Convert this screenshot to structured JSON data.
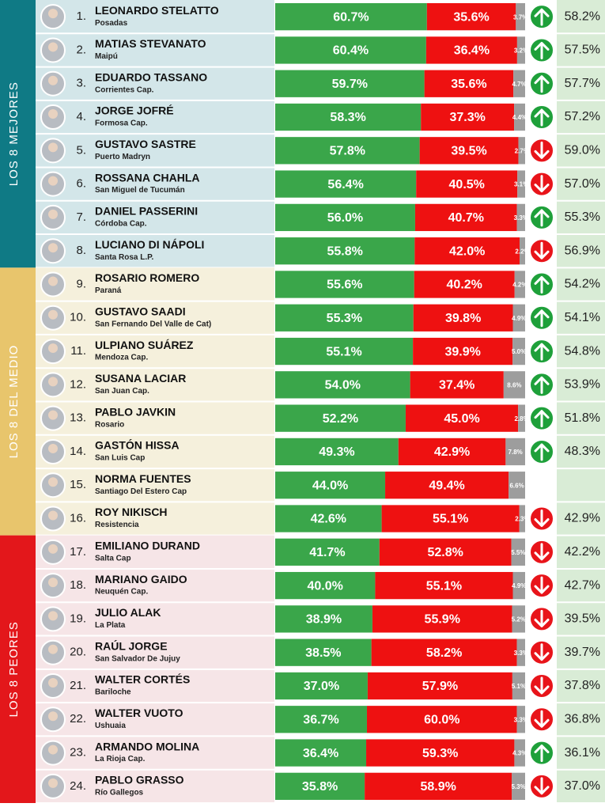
{
  "groups": [
    {
      "label": "LOS 8 MEJORES",
      "color": "#0f7a85",
      "background": "#d3e6e9",
      "rows": [
        {
          "rank": "1.",
          "name": "LEONARDO STELATTO",
          "city": "Posadas",
          "values": [
            60.7,
            35.6,
            3.7
          ],
          "value_labels": [
            "60.7%",
            "35.6%",
            "3.7%"
          ],
          "trend": "up",
          "previous": "58.2%"
        },
        {
          "rank": "2.",
          "name": "MATIAS STEVANATO",
          "city": "Maipú",
          "values": [
            60.4,
            36.4,
            3.2
          ],
          "value_labels": [
            "60.4%",
            "36.4%",
            "3.2%"
          ],
          "trend": "up",
          "previous": "57.5%"
        },
        {
          "rank": "3.",
          "name": "EDUARDO TASSANO",
          "city": "Corrientes Cap.",
          "values": [
            59.7,
            35.6,
            4.7
          ],
          "value_labels": [
            "59.7%",
            "35.6%",
            "4.7%"
          ],
          "trend": "up",
          "previous": "57.7%"
        },
        {
          "rank": "4.",
          "name": "JORGE JOFRÉ",
          "city": "Formosa Cap.",
          "values": [
            58.3,
            37.3,
            4.4
          ],
          "value_labels": [
            "58.3%",
            "37.3%",
            "4.4%"
          ],
          "trend": "up",
          "previous": "57.2%"
        },
        {
          "rank": "5.",
          "name": "GUSTAVO SASTRE",
          "city": "Puerto Madryn",
          "values": [
            57.8,
            39.5,
            2.7
          ],
          "value_labels": [
            "57.8%",
            "39.5%",
            "2.7%"
          ],
          "trend": "down",
          "previous": "59.0%"
        },
        {
          "rank": "6.",
          "name": "ROSSANA CHAHLA",
          "city": "San Miguel de Tucumán",
          "values": [
            56.4,
            40.5,
            3.1
          ],
          "value_labels": [
            "56.4%",
            "40.5%",
            "3.1%"
          ],
          "trend": "down",
          "previous": "57.0%"
        },
        {
          "rank": "7.",
          "name": "DANIEL PASSERINI",
          "city": "Córdoba Cap.",
          "values": [
            56.0,
            40.7,
            3.3
          ],
          "value_labels": [
            "56.0%",
            "40.7%",
            "3.3%"
          ],
          "trend": "up",
          "previous": "55.3%"
        },
        {
          "rank": "8.",
          "name": "LUCIANO DI NÁPOLI",
          "city": "Santa Rosa L.P.",
          "values": [
            55.8,
            42.0,
            2.2
          ],
          "value_labels": [
            "55.8%",
            "42.0%",
            "2.2%"
          ],
          "trend": "down",
          "previous": "56.9%"
        }
      ]
    },
    {
      "label": "LOS 8 DEL MEDIO",
      "color": "#e8c56c",
      "background": "#f5f0dc",
      "rows": [
        {
          "rank": "9.",
          "name": "ROSARIO ROMERO",
          "city": "Paraná",
          "values": [
            55.6,
            40.2,
            4.2
          ],
          "value_labels": [
            "55.6%",
            "40.2%",
            "4.2%"
          ],
          "trend": "up",
          "previous": "54.2%"
        },
        {
          "rank": "10.",
          "name": "GUSTAVO SAADI",
          "city": "San Fernando Del Valle de Cat)",
          "values": [
            55.3,
            39.8,
            4.9
          ],
          "value_labels": [
            "55.3%",
            "39.8%",
            "4.9%"
          ],
          "trend": "up",
          "previous": "54.1%"
        },
        {
          "rank": "11.",
          "name": "ULPIANO SUÁREZ",
          "city": "Mendoza Cap.",
          "values": [
            55.1,
            39.9,
            5.0
          ],
          "value_labels": [
            "55.1%",
            "39.9%",
            "5.0%"
          ],
          "trend": "up",
          "previous": "54.8%"
        },
        {
          "rank": "12.",
          "name": "SUSANA LACIAR",
          "city": "San Juan Cap.",
          "values": [
            54.0,
            37.4,
            8.6
          ],
          "value_labels": [
            "54.0%",
            "37.4%",
            "8.6%"
          ],
          "trend": "up",
          "previous": "53.9%"
        },
        {
          "rank": "13.",
          "name": "PABLO JAVKIN",
          "city": "Rosario",
          "values": [
            52.2,
            45.0,
            2.8
          ],
          "value_labels": [
            "52.2%",
            "45.0%",
            "2.8%"
          ],
          "trend": "up",
          "previous": "51.8%"
        },
        {
          "rank": "14.",
          "name": "GASTÓN HISSA",
          "city": "San Luis Cap",
          "values": [
            49.3,
            42.9,
            7.8
          ],
          "value_labels": [
            "49.3%",
            "42.9%",
            "7.8%"
          ],
          "trend": "up",
          "previous": "48.3%"
        },
        {
          "rank": "15.",
          "name": "NORMA FUENTES",
          "city": "Santiago Del Estero Cap",
          "values": [
            44.0,
            49.4,
            6.6
          ],
          "value_labels": [
            "44.0%",
            "49.4%",
            "6.6%"
          ],
          "trend": null,
          "previous": null
        },
        {
          "rank": "16.",
          "name": "ROY NIKISCH",
          "city": "Resistencia",
          "values": [
            42.6,
            55.1,
            2.3
          ],
          "value_labels": [
            "42.6%",
            "55.1%",
            "2.3%"
          ],
          "trend": "down",
          "previous": "42.9%"
        }
      ]
    },
    {
      "label": "LOS 8 PEORES",
      "color": "#e3171b",
      "background": "#f6e5e7",
      "rows": [
        {
          "rank": "17.",
          "name": "EMILIANO DURAND",
          "city": "Salta Cap",
          "values": [
            41.7,
            52.8,
            5.5
          ],
          "value_labels": [
            "41.7%",
            "52.8%",
            "5.5%"
          ],
          "trend": "down",
          "previous": "42.2%"
        },
        {
          "rank": "18.",
          "name": "MARIANO GAIDO",
          "city": "Neuquén Cap.",
          "values": [
            40.0,
            55.1,
            4.9
          ],
          "value_labels": [
            "40.0%",
            "55.1%",
            "4.9%"
          ],
          "trend": "down",
          "previous": "42.7%"
        },
        {
          "rank": "19.",
          "name": "JULIO ALAK",
          "city": "La Plata",
          "values": [
            38.9,
            55.9,
            5.2
          ],
          "value_labels": [
            "38.9%",
            "55.9%",
            "5.2%"
          ],
          "trend": "down",
          "previous": "39.5%"
        },
        {
          "rank": "20.",
          "name": "RAÚL JORGE",
          "city": "San Salvador De Jujuy",
          "values": [
            38.5,
            58.2,
            3.3
          ],
          "value_labels": [
            "38.5%",
            "58.2%",
            "3.3%"
          ],
          "trend": "down",
          "previous": "39.7%"
        },
        {
          "rank": "21.",
          "name": "WALTER CORTÉS",
          "city": "Bariloche",
          "values": [
            37.0,
            57.9,
            5.1
          ],
          "value_labels": [
            "37.0%",
            "57.9%",
            "5.1%"
          ],
          "trend": "down",
          "previous": "37.8%"
        },
        {
          "rank": "22.",
          "name": "WALTER VUOTO",
          "city": "Ushuaia",
          "values": [
            36.7,
            60.0,
            3.3
          ],
          "value_labels": [
            "36.7%",
            "60.0%",
            "3.3%"
          ],
          "trend": "down",
          "previous": "36.8%"
        },
        {
          "rank": "23.",
          "name": "ARMANDO MOLINA",
          "city": "La Rioja Cap.",
          "values": [
            36.4,
            59.3,
            4.3
          ],
          "value_labels": [
            "36.4%",
            "59.3%",
            "4.3%"
          ],
          "trend": "up",
          "previous": "36.1%"
        },
        {
          "rank": "24.",
          "name": "PABLO GRASSO",
          "city": "Río Gallegos",
          "values": [
            35.8,
            58.9,
            5.3
          ],
          "value_labels": [
            "35.8%",
            "58.9%",
            "5.3%"
          ],
          "trend": "down",
          "previous": "37.0%"
        }
      ]
    }
  ]
}
